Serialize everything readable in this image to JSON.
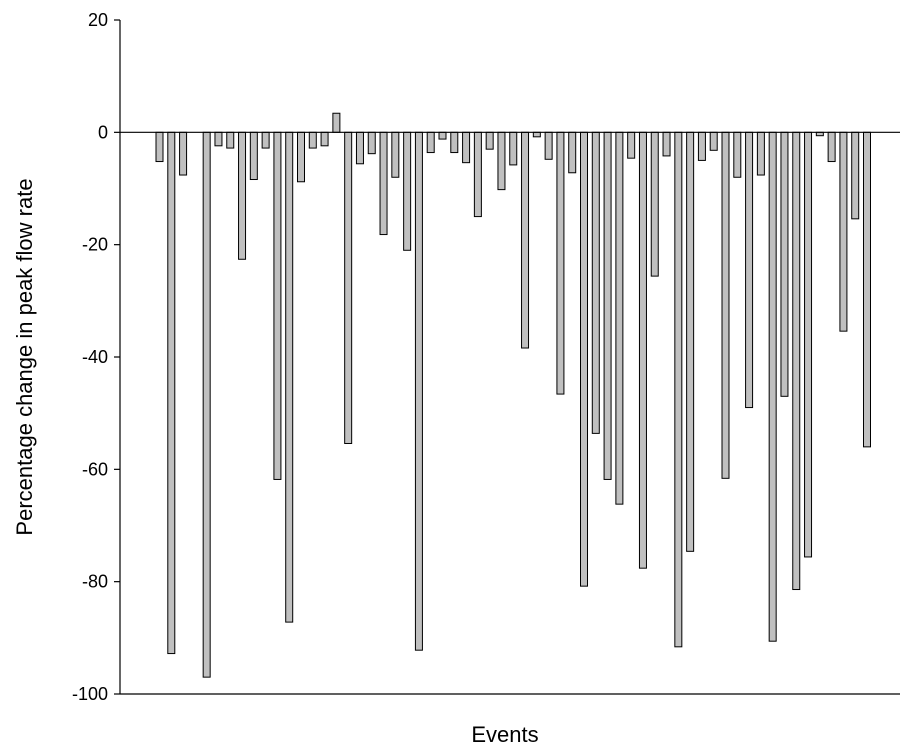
{
  "chart_data": {
    "type": "bar",
    "title": "",
    "xlabel": "Events",
    "ylabel": "Percentage change in peak flow rate",
    "ylim": [
      -100,
      20
    ],
    "yticks": [
      20,
      0,
      -20,
      -40,
      -60,
      -80,
      -100
    ],
    "grid": false,
    "legend": "none",
    "colors": {
      "bar_fill": "#c0c0c0",
      "bar_stroke": "#000000",
      "axis": "#000000"
    },
    "values": [
      -5.2,
      -92.8,
      -7.6,
      0,
      -97.0,
      -2.4,
      -2.8,
      -22.6,
      -8.4,
      -2.8,
      -61.8,
      -87.2,
      -8.8,
      -2.8,
      -2.4,
      3.4,
      -55.4,
      -5.6,
      -3.8,
      -18.2,
      -8.0,
      -21.0,
      -92.2,
      -3.6,
      -1.2,
      -3.6,
      -5.4,
      -15.0,
      -3.0,
      -10.2,
      -5.8,
      -38.4,
      -0.8,
      -4.8,
      -46.6,
      -7.2,
      -80.8,
      -53.6,
      -61.8,
      -66.2,
      -4.6,
      -77.6,
      -25.6,
      -4.2,
      -91.6,
      -74.6,
      -5.0,
      -3.2,
      -61.6,
      -8.0,
      -49.0,
      -7.6,
      -90.6,
      -47.0,
      -81.4,
      -75.6,
      -0.6,
      -5.2,
      -35.4,
      -15.4,
      -56.0
    ]
  }
}
